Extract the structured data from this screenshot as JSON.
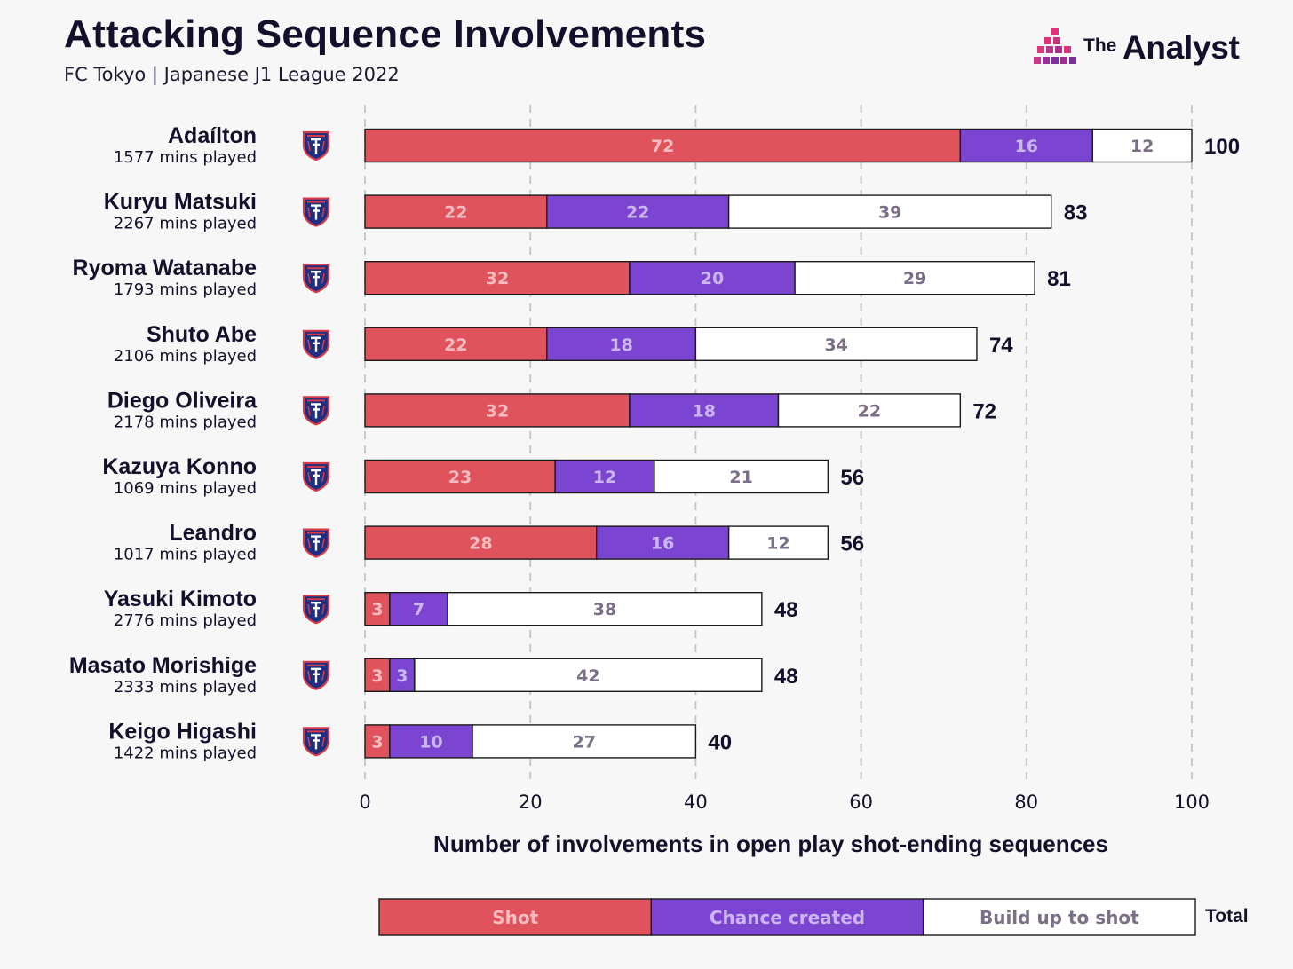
{
  "header": {
    "title": "Attacking Sequence Involvements",
    "subtitle": "FC Tokyo | Japanese J1 League 2022"
  },
  "brand": {
    "the": "The",
    "name": "Analyst"
  },
  "legend": {
    "total_label": "Total"
  },
  "colors": {
    "shot": "#e0535c",
    "chance_created": "#7b45d1",
    "build_up": "#ffffff",
    "gridline": "#c8c8c8",
    "text_dark": "#150f2b",
    "label_muted": "#7a6f86",
    "brand_pink": "#e0317a",
    "brand_purple": "#7a2f9a"
  },
  "icons": {
    "club_badge": "fc-tokyo-crest-icon",
    "brand_mark": "the-analyst-logo-icon"
  },
  "chart_data": {
    "type": "bar",
    "orientation": "horizontal",
    "stacked": true,
    "title": "Attacking Sequence Involvements",
    "subtitle": "FC Tokyo | Japanese J1 League 2022",
    "xlabel": "Number of involvements in open play shot-ending sequences",
    "ylabel": "",
    "xlim": [
      0,
      100
    ],
    "xticks": [
      0,
      20,
      40,
      60,
      80,
      100
    ],
    "grid": "vertical dashed",
    "legend_position": "bottom",
    "categories": [
      "Adaílton",
      "Kuryu Matsuki",
      "Ryoma Watanabe",
      "Shuto Abe",
      "Diego Oliveira",
      "Kazuya Konno",
      "Leandro",
      "Yasuki Kimoto",
      "Masato Morishige",
      "Keigo Higashi"
    ],
    "minutes": [
      "1577 mins played",
      "2267 mins played",
      "1793 mins played",
      "2106 mins played",
      "2178 mins played",
      "1069 mins played",
      "1017 mins played",
      "2776 mins played",
      "2333 mins played",
      "1422 mins played"
    ],
    "series": [
      {
        "name": "Shot",
        "values": [
          72,
          22,
          32,
          22,
          32,
          23,
          28,
          3,
          3,
          3
        ]
      },
      {
        "name": "Chance created",
        "values": [
          16,
          22,
          20,
          18,
          18,
          12,
          16,
          7,
          3,
          10
        ]
      },
      {
        "name": "Build up to shot",
        "values": [
          12,
          39,
          29,
          34,
          22,
          21,
          12,
          38,
          42,
          27
        ]
      }
    ],
    "totals": [
      100,
      83,
      81,
      74,
      72,
      56,
      56,
      48,
      48,
      40
    ]
  }
}
